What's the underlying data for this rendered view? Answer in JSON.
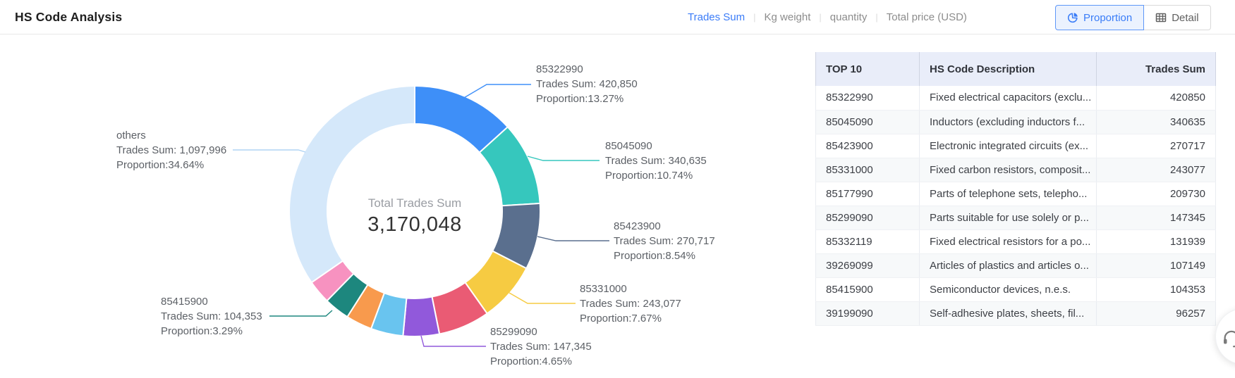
{
  "header": {
    "title": "HS Code Analysis",
    "metric_tabs": [
      {
        "label": "Trades Sum",
        "active": true
      },
      {
        "label": "Kg weight",
        "active": false
      },
      {
        "label": "quantity",
        "active": false
      },
      {
        "label": "Total price (USD)",
        "active": false
      }
    ],
    "view_buttons": {
      "proportion": {
        "label": "Proportion",
        "icon": "pie-chart-icon",
        "active": true
      },
      "detail": {
        "label": "Detail",
        "icon": "table-icon",
        "active": false
      }
    },
    "accent_color": "#3b7cf8"
  },
  "chart_data": {
    "type": "pie",
    "center_label": "Total Trades Sum",
    "center_value": "3,170,048",
    "total": 3170048,
    "legend_position": "callout-labels",
    "segments": [
      {
        "name": "85322990",
        "value": 420850,
        "proportion": 13.27,
        "color": "#3E8FF8"
      },
      {
        "name": "85045090",
        "value": 340635,
        "proportion": 10.74,
        "color": "#36C7BD"
      },
      {
        "name": "85423900",
        "value": 270717,
        "proportion": 8.54,
        "color": "#5A6F8E"
      },
      {
        "name": "85331000",
        "value": 243077,
        "proportion": 7.67,
        "color": "#F6CB42"
      },
      {
        "name": "85177990",
        "value": 209730,
        "proportion": 6.62,
        "color": "#EA5B74"
      },
      {
        "name": "85299090",
        "value": 147345,
        "proportion": 4.65,
        "color": "#9159DB"
      },
      {
        "name": "85332119",
        "value": 131939,
        "proportion": 4.16,
        "color": "#69C4EF"
      },
      {
        "name": "39269099",
        "value": 107149,
        "proportion": 3.38,
        "color": "#F89A4D"
      },
      {
        "name": "85415900",
        "value": 104353,
        "proportion": 3.29,
        "color": "#1D877E"
      },
      {
        "name": "39199090",
        "value": 96257,
        "proportion": 3.04,
        "color": "#F792C0"
      },
      {
        "name": "others",
        "value": 1097996,
        "proportion": 34.64,
        "color": "#D5E8FA"
      }
    ],
    "labels": [
      {
        "name": "85322990",
        "trades": "Trades Sum: 420,850",
        "proportion": "Proportion:13.27%",
        "color": "#3E8FF8"
      },
      {
        "name": "85045090",
        "trades": "Trades Sum: 340,635",
        "proportion": "Proportion:10.74%",
        "color": "#36C7BD"
      },
      {
        "name": "85423900",
        "trades": "Trades Sum: 270,717",
        "proportion": "Proportion:8.54%",
        "color": "#5A6F8E"
      },
      {
        "name": "85331000",
        "trades": "Trades Sum: 243,077",
        "proportion": "Proportion:7.67%",
        "color": "#F6CB42"
      },
      {
        "name": "85299090",
        "trades": "Trades Sum: 147,345",
        "proportion": "Proportion:4.65%",
        "color": "#9159DB"
      },
      {
        "name": "85415900",
        "trades": "Trades Sum: 104,353",
        "proportion": "Proportion:3.29%",
        "color": "#1D877E"
      },
      {
        "name": "others",
        "trades": "Trades Sum: 1,097,996",
        "proportion": "Proportion:34.64%",
        "color": "#AFD3F4"
      }
    ]
  },
  "table": {
    "headers": [
      "TOP 10",
      "HS Code Description",
      "Trades Sum"
    ],
    "rows": [
      {
        "code": "85322990",
        "description": "Fixed electrical capacitors (exclu...",
        "value": "420850"
      },
      {
        "code": "85045090",
        "description": "Inductors (excluding inductors f...",
        "value": "340635"
      },
      {
        "code": "85423900",
        "description": "Electronic integrated circuits (ex...",
        "value": "270717"
      },
      {
        "code": "85331000",
        "description": "Fixed carbon resistors, composit...",
        "value": "243077"
      },
      {
        "code": "85177990",
        "description": "Parts of telephone sets, telepho...",
        "value": "209730"
      },
      {
        "code": "85299090",
        "description": "Parts suitable for use solely or p...",
        "value": "147345"
      },
      {
        "code": "85332119",
        "description": "Fixed electrical resistors for a po...",
        "value": "131939"
      },
      {
        "code": "39269099",
        "description": "Articles of plastics and articles o...",
        "value": "107149"
      },
      {
        "code": "85415900",
        "description": "Semiconductor devices, n.e.s.",
        "value": "104353"
      },
      {
        "code": "39199090",
        "description": "Self-adhesive plates, sheets, fil...",
        "value": "96257"
      }
    ]
  },
  "floating_button": {
    "icon": "headset-icon"
  }
}
